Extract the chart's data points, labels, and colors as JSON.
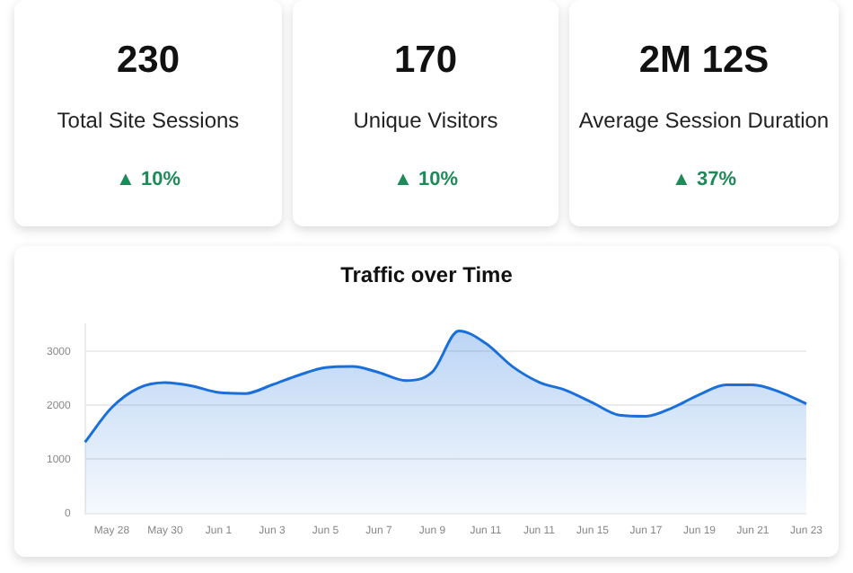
{
  "chart_data": [
    {
      "type": "other",
      "title": "230",
      "subtitle": "Total Site Sessions",
      "annotations": [
        "▲ 10%"
      ]
    },
    {
      "type": "other",
      "title": "170",
      "subtitle": "Unique Visitors",
      "annotations": [
        "▲ 10%"
      ]
    },
    {
      "type": "other",
      "title": "2M 12S",
      "subtitle": "Average Session Duration",
      "annotations": [
        "▲ 37%"
      ]
    },
    {
      "type": "area",
      "title": "Traffic over Time",
      "categories": [
        null,
        "May 28",
        null,
        "May 30",
        null,
        "Jun 1",
        null,
        "Jun 3",
        null,
        "Jun 5",
        null,
        "Jun 7",
        null,
        "Jun 9",
        null,
        "Jun 11",
        null,
        "Jun 11",
        null,
        "Jun 15",
        null,
        "Jun 17",
        null,
        "Jun 19",
        null,
        "Jun 21",
        null,
        "Jun 23"
      ],
      "values": [
        1320,
        1960,
        2320,
        2420,
        2360,
        2240,
        2220,
        2380,
        2560,
        2700,
        2720,
        2610,
        2460,
        2620,
        3380,
        3150,
        2720,
        2430,
        2280,
        2050,
        1820,
        1800,
        1960,
        2200,
        2380,
        2380,
        2250,
        2030
      ],
      "color": "#1a6fdb",
      "ylim": [
        0,
        3500
      ],
      "yticks": [
        0,
        1000,
        2000,
        3000
      ],
      "grid": "y",
      "legend": false
    }
  ]
}
